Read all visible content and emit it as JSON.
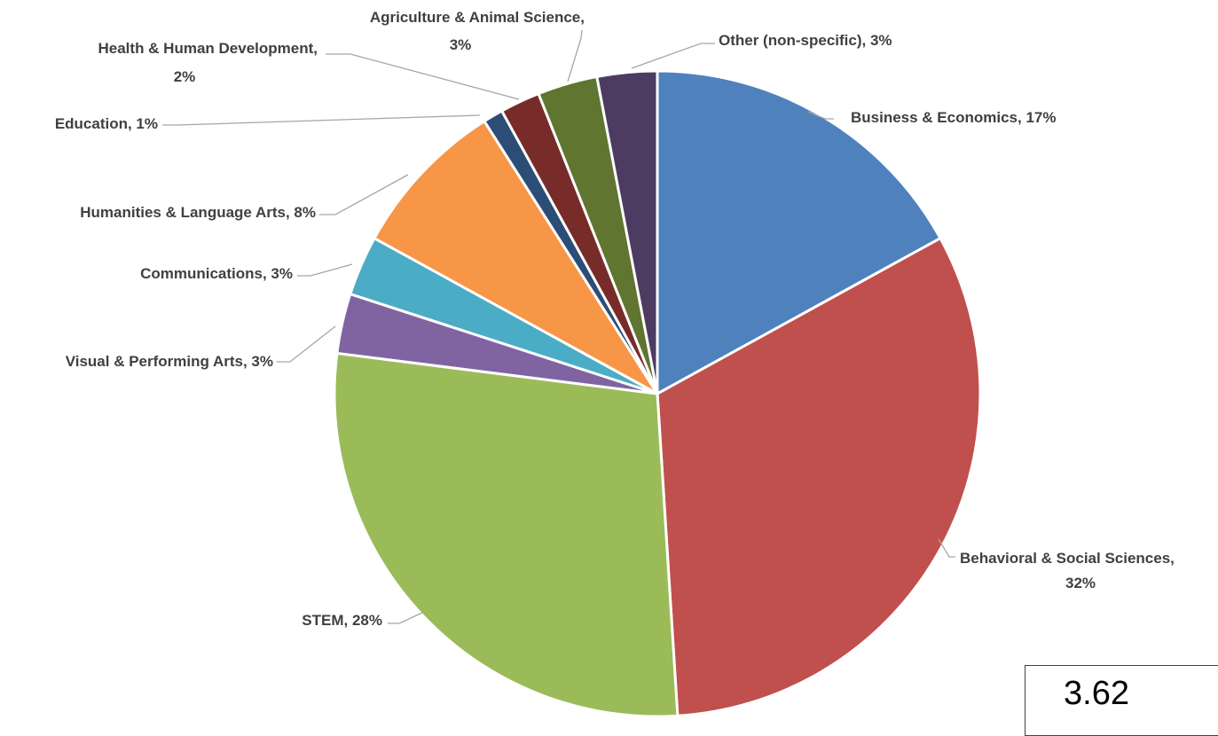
{
  "chart_data": {
    "type": "pie",
    "title": "",
    "slices": [
      {
        "label": "Business & Economics",
        "value": 17,
        "display": "17%",
        "color": "#4f81bd"
      },
      {
        "label": "Behavioral & Social Sciences",
        "value": 32,
        "display": "32%",
        "color": "#c0504d"
      },
      {
        "label": "STEM",
        "value": 28,
        "display": "28%",
        "color": "#9bbb59"
      },
      {
        "label": "Visual & Performing Arts",
        "value": 3,
        "display": "3%",
        "color": "#8064a2"
      },
      {
        "label": "Communications",
        "value": 3,
        "display": "3%",
        "color": "#4bacc6"
      },
      {
        "label": "Humanities & Language Arts",
        "value": 8,
        "display": "8%",
        "color": "#f79646"
      },
      {
        "label": "Education",
        "value": 1,
        "display": "1%",
        "color": "#2c4d75"
      },
      {
        "label": "Health & Human Development",
        "value": 2,
        "display": "2%",
        "color": "#772c2a"
      },
      {
        "label": "Agriculture & Animal Science",
        "value": 3,
        "display": "3%",
        "color": "#5f7530"
      },
      {
        "label": "Other (non-specific)",
        "value": 3,
        "display": "3%",
        "color": "#4d3b62"
      }
    ],
    "legend": "none"
  },
  "value_box": {
    "text": "3.62"
  }
}
